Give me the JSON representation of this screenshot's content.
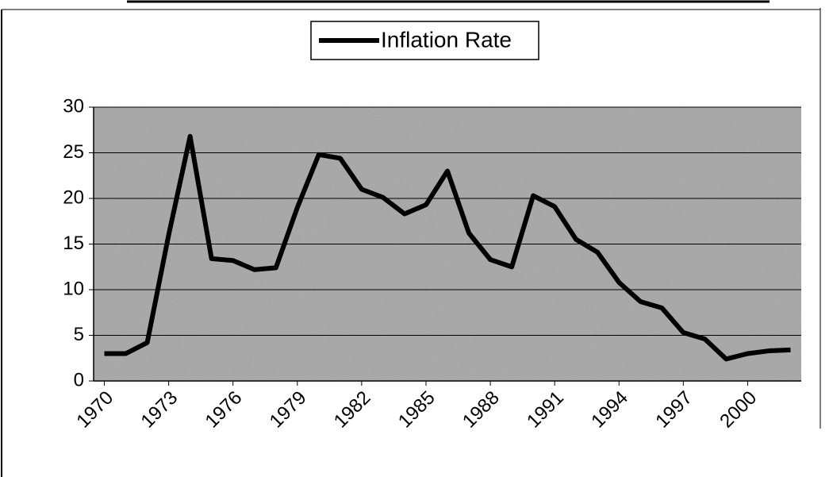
{
  "chart_data": {
    "type": "line",
    "x": [
      1970,
      1971,
      1972,
      1973,
      1974,
      1975,
      1976,
      1977,
      1978,
      1979,
      1980,
      1981,
      1982,
      1983,
      1984,
      1985,
      1986,
      1987,
      1988,
      1989,
      1990,
      1991,
      1992,
      1993,
      1994,
      1995,
      1996,
      1997,
      1998,
      1999,
      2000,
      2001,
      2002
    ],
    "series": [
      {
        "name": "Inflation Rate",
        "color": "#000000",
        "values": [
          3.0,
          3.0,
          4.2,
          16,
          26.8,
          13.4,
          13.2,
          12.2,
          12.4,
          19,
          24.8,
          24.4,
          21.0,
          20.1,
          18.3,
          19.3,
          23.0,
          16.2,
          13.3,
          12.5,
          20.3,
          19.1,
          15.5,
          14.1,
          10.8,
          8.7,
          8.0,
          5.3,
          4.6,
          2.4,
          3.0,
          3.3,
          3.4
        ]
      }
    ],
    "xlim": [
      1969.5,
      2002.5
    ],
    "xticks": [
      1970,
      1973,
      1976,
      1979,
      1982,
      1985,
      1988,
      1991,
      1994,
      1997,
      2000
    ],
    "ylim": [
      0,
      30
    ],
    "yticks": [
      0,
      5,
      10,
      15,
      20,
      25,
      30
    ],
    "grid": true,
    "legend": "top"
  }
}
